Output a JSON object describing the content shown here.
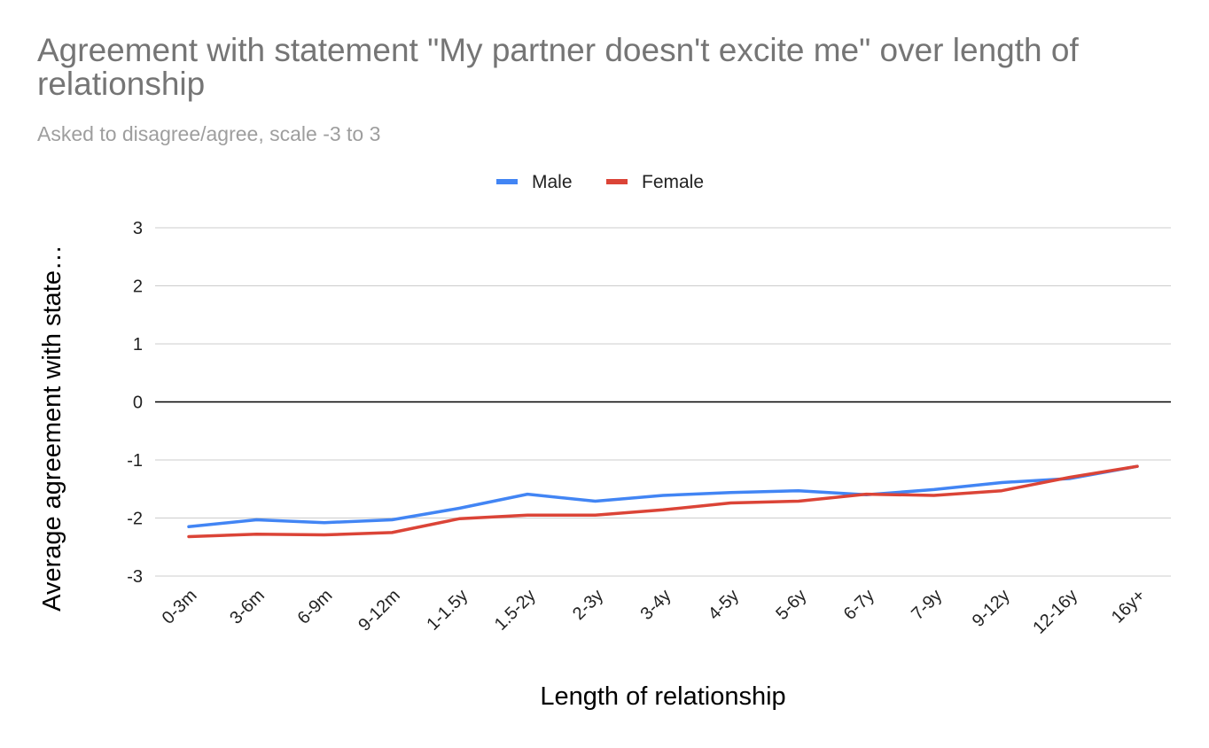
{
  "chart_data": {
    "type": "line",
    "title": "Agreement with statement \"My partner doesn't excite me\" over length of relationship",
    "subtitle": "Asked to disagree/agree, scale -3 to 3",
    "xlabel": "Length of relationship",
    "ylabel": "Average agreement with statement",
    "ylabel_display": "Average agreement with state…",
    "ylim": [
      -3,
      3
    ],
    "yticks": [
      3,
      2,
      1,
      0,
      -1,
      -2,
      -3
    ],
    "grid": true,
    "legend_position": "top",
    "categories": [
      "0-3m",
      "3-6m",
      "6-9m",
      "9-12m",
      "1-1.5y",
      "1.5-2y",
      "2-3y",
      "3-4y",
      "4-5y",
      "5-6y",
      "6-7y",
      "7-9y",
      "9-12y",
      "12-16y",
      "16y+"
    ],
    "series": [
      {
        "name": "Male",
        "color": "#4285f4",
        "values": [
          -2.15,
          -2.03,
          -2.08,
          -2.03,
          -1.83,
          -1.59,
          -1.71,
          -1.61,
          -1.56,
          -1.53,
          -1.6,
          -1.51,
          -1.39,
          -1.32,
          -1.11
        ]
      },
      {
        "name": "Female",
        "color": "#db4437",
        "values": [
          -2.32,
          -2.28,
          -2.29,
          -2.25,
          -2.01,
          -1.95,
          -1.95,
          -1.86,
          -1.74,
          -1.71,
          -1.59,
          -1.61,
          -1.53,
          -1.3,
          -1.11
        ]
      }
    ]
  }
}
